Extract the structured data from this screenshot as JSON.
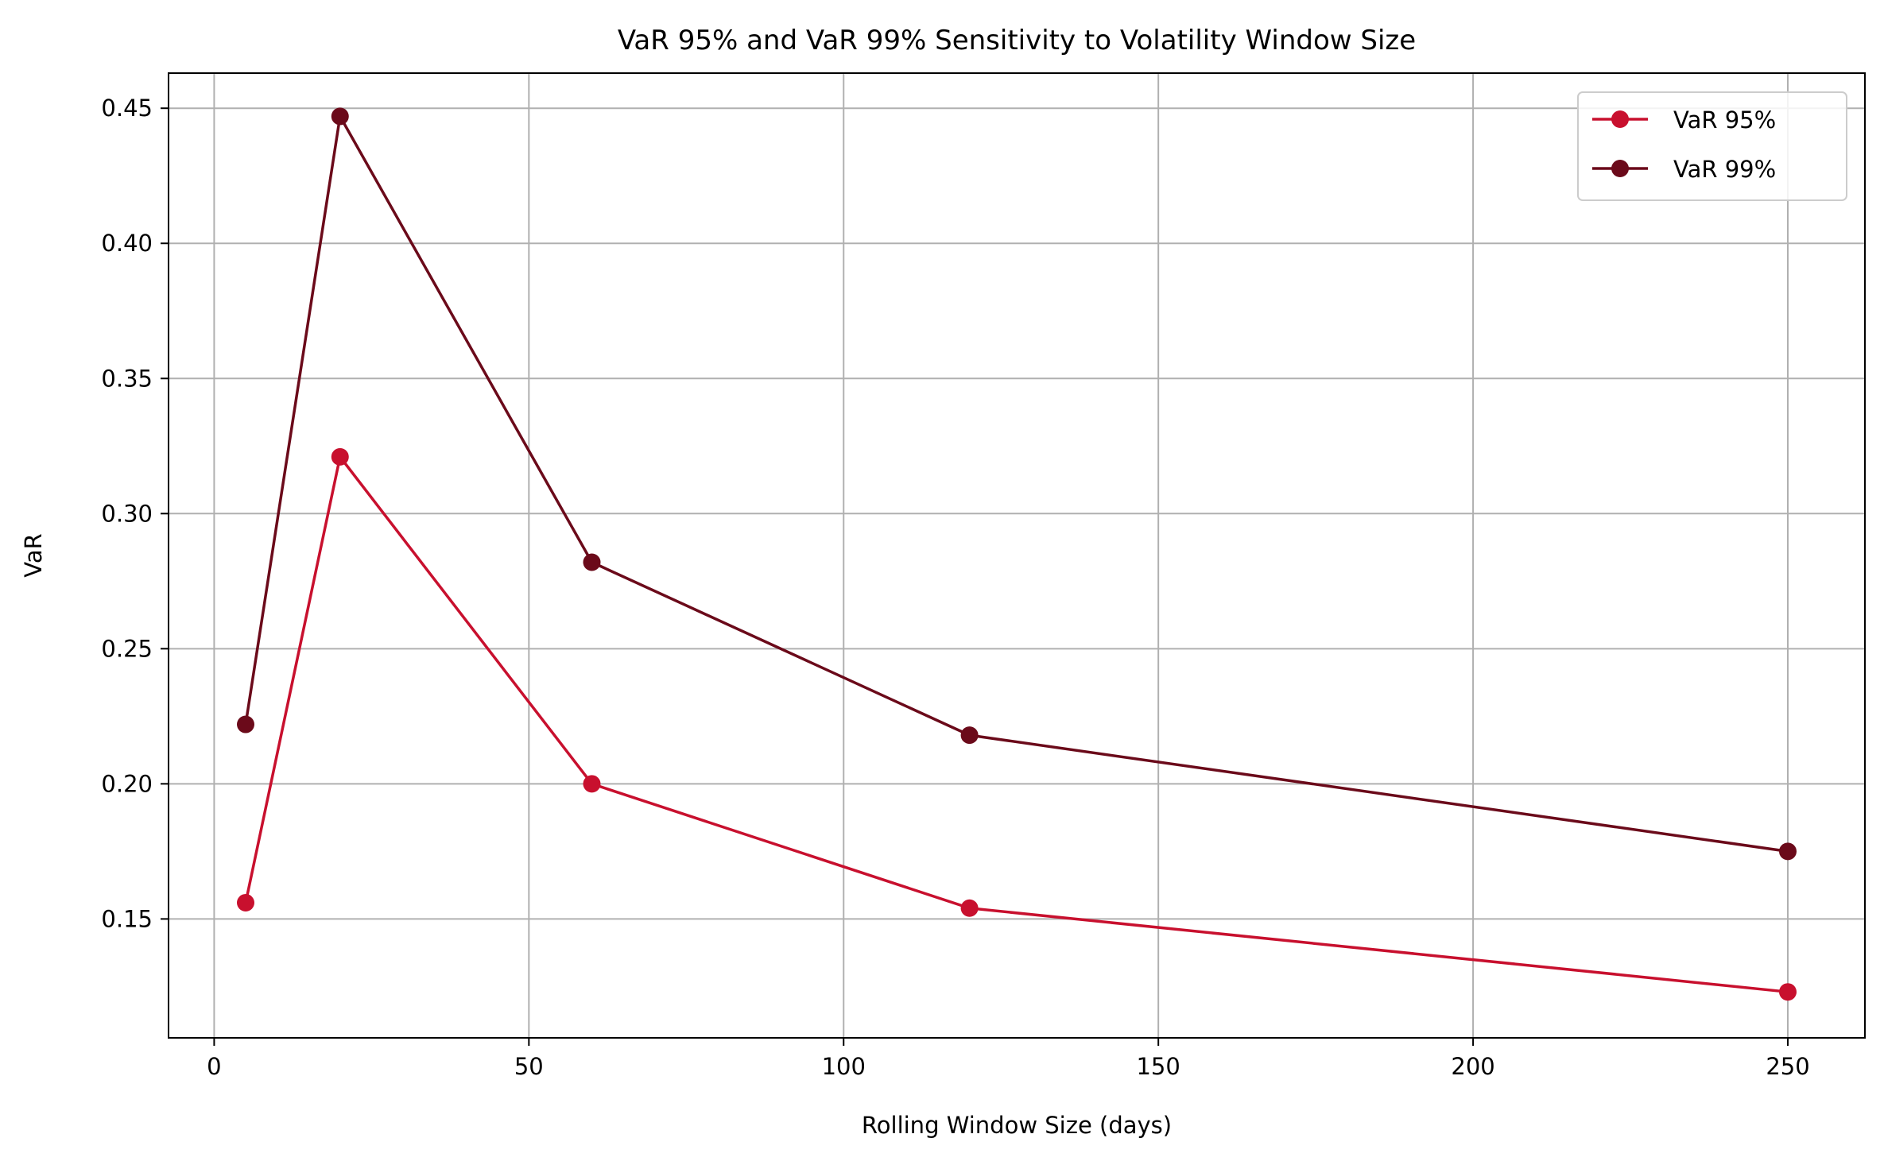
{
  "chart_data": {
    "type": "line",
    "title": "VaR 95% and VaR 99% Sensitivity to Volatility Window Size",
    "xlabel": "Rolling Window Size (days)",
    "ylabel": "VaR",
    "x": [
      5,
      20,
      60,
      120,
      250
    ],
    "xlim": [
      -7.25,
      262.25
    ],
    "ylim": [
      0.106,
      0.463
    ],
    "xticks": [
      0,
      50,
      100,
      150,
      200,
      250
    ],
    "xtick_labels": [
      "0",
      "50",
      "100",
      "150",
      "200",
      "250"
    ],
    "yticks": [
      0.15,
      0.2,
      0.25,
      0.3,
      0.35,
      0.4,
      0.45
    ],
    "ytick_labels": [
      "0.15",
      "0.20",
      "0.25",
      "0.30",
      "0.35",
      "0.40",
      "0.45"
    ],
    "grid": true,
    "legend_position": "top-right",
    "series": [
      {
        "name": "VaR 95%",
        "color": "#C8102E",
        "marker": "circle",
        "values": [
          0.156,
          0.321,
          0.2,
          0.154,
          0.123
        ]
      },
      {
        "name": "VaR 99%",
        "color": "#6B0A1A",
        "marker": "circle",
        "values": [
          0.222,
          0.447,
          0.282,
          0.218,
          0.175
        ]
      }
    ]
  }
}
